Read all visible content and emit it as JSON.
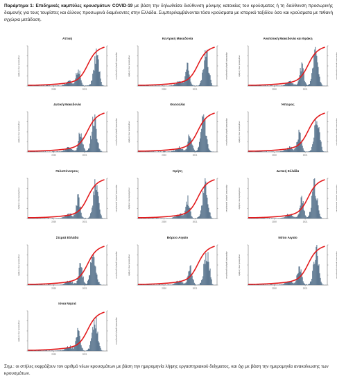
{
  "header": {
    "lead": "Παράρτημα 1:",
    "title": "Επιδημικές καμπύλες κρουσμάτων COVID-19",
    "body": "με βάση την δηλωθείσα διεύθυνση μόνιμης κατοικίας του κρούσματος ή τη διεύθυνση προσωρινής διαμονής για τους τουρίστες και άλλους προσωρινά διαμένοντες στην Ελλάδα. Συμπεριλαμβάνονται τόσο κρούσματα με ιστορικό ταξιδίου όσο και κρούσματα με πιθανή εγχώρια μετάδοση."
  },
  "footnote": "Σημ.: οι στήλες εκφράζουν τον αριθμό νέων κρουσμάτων με βάση την ημερομηνία λήψης εργαστηριακού δείγματος, και όχι με βάση την ημερομηνία ανακοίνωσης των κρουσμάτων.",
  "colors": {
    "bars": "#4d6a85",
    "line": "#e31a1c",
    "axis": "#555555"
  },
  "chart_data": [
    {
      "type": "bar",
      "title": "Αττική",
      "x": [
        "2020",
        "2021"
      ],
      "ylabel": "Αριθμός νέων κρουσμάτων",
      "y2label": "Αθροιστικός αριθμός κρουσμάτων"
    },
    {
      "type": "bar",
      "title": "Κεντρική Μακεδονία",
      "x": [
        "2020",
        "2021"
      ],
      "ylabel": "Αριθμός νέων κρουσμάτων",
      "y2label": "Αθροιστικός αριθμός κρουσμάτων"
    },
    {
      "type": "bar",
      "title": "Ανατολική Μακεδονία και Θράκη",
      "x": [
        "2020",
        "2021"
      ],
      "ylabel": "Αριθμός νέων κρουσμάτων",
      "y2label": "Αθροιστικός αριθμός κρουσμάτων"
    },
    {
      "type": "bar",
      "title": "Δυτική Μακεδονία",
      "x": [
        "2020",
        "2021"
      ],
      "ylabel": "Αριθμός νέων κρουσμάτων",
      "y2label": "Αθροιστικός αριθμός κρουσμάτων"
    },
    {
      "type": "bar",
      "title": "Θεσσαλία",
      "x": [
        "2020",
        "2021"
      ],
      "ylabel": "Αριθμός νέων κρουσμάτων",
      "y2label": "Αθροιστικός αριθμός κρουσμάτων"
    },
    {
      "type": "bar",
      "title": "Ήπειρος",
      "x": [
        "2020",
        "2021"
      ],
      "ylabel": "Αριθμός νέων κρουσμάτων",
      "y2label": "Αθροιστικός αριθμός κρουσμάτων"
    },
    {
      "type": "bar",
      "title": "Πελοπόννησος",
      "x": [
        "2020",
        "2021"
      ],
      "ylabel": "Αριθμός νέων κρουσμάτων",
      "y2label": "Αθροιστικός αριθμός κρουσμάτων"
    },
    {
      "type": "bar",
      "title": "Κρήτη",
      "x": [
        "2020",
        "2021"
      ],
      "ylabel": "Αριθμός νέων κρουσμάτων",
      "y2label": "Αθροιστικός αριθμός κρουσμάτων"
    },
    {
      "type": "bar",
      "title": "Δυτική Ελλάδα",
      "x": [
        "2020",
        "2021"
      ],
      "ylabel": "Αριθμός νέων κρουσμάτων",
      "y2label": "Αθροιστικός αριθμός κρουσμάτων"
    },
    {
      "type": "bar",
      "title": "Στερεά Ελλάδα",
      "x": [
        "2020",
        "2021"
      ],
      "ylabel": "Αριθμός νέων κρουσμάτων",
      "y2label": "Αθροιστικός αριθμός κρουσμάτων"
    },
    {
      "type": "bar",
      "title": "Βόρειο Αιγαίο",
      "x": [
        "2020",
        "2021"
      ],
      "ylabel": "Αριθμός νέων κρουσμάτων",
      "y2label": "Αθροιστικός αριθμός κρουσμάτων"
    },
    {
      "type": "bar",
      "title": "Νότιο Αιγαίο",
      "x": [
        "2020",
        "2021"
      ],
      "ylabel": "Αριθμός νέων κρουσμάτων",
      "y2label": "Αθροιστικός αριθμός κρουσμάτων"
    },
    {
      "type": "bar",
      "title": "Ιόνια Νησιά",
      "x": [
        "2020",
        "2021"
      ],
      "ylabel": "Αριθμός νέων κρουσμάτων",
      "y2label": "Αθροιστικός αριθμός κρουσμάτων"
    }
  ]
}
